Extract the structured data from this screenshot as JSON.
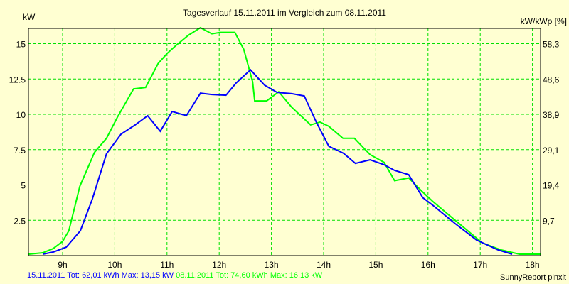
{
  "chart_data": {
    "type": "line",
    "title": "Tagesverlauf 15.11.2011 im Vergleich zum 08.11.2011",
    "ylabel": "kW",
    "ylabel_right": "kW/kWp [%]",
    "xlabel": "",
    "xlim": [
      8.35,
      18.16
    ],
    "ylim": [
      0,
      16.13
    ],
    "grid": true,
    "x_ticks": [
      9,
      10,
      11,
      12,
      13,
      14,
      15,
      16,
      17,
      18
    ],
    "x_tick_labels": [
      "9h",
      "10h",
      "11h",
      "12h",
      "13h",
      "14h",
      "15h",
      "16h",
      "17h",
      "18h"
    ],
    "y_ticks": [
      2.5,
      5,
      7.5,
      10,
      12.5,
      15
    ],
    "y_tick_labels": [
      "2.5",
      "5",
      "7.5",
      "10",
      "12.5",
      "15"
    ],
    "y_right_tick_labels": [
      "9,7",
      "19,4",
      "29,1",
      "38,9",
      "48,6",
      "58,3"
    ],
    "series": [
      {
        "name": "15.11.2011",
        "color": "#0000ff",
        "x": [
          8.62,
          8.82,
          9.07,
          9.34,
          9.57,
          9.84,
          10.12,
          10.39,
          10.63,
          10.87,
          11.1,
          11.37,
          11.64,
          11.86,
          12.13,
          12.32,
          12.6,
          12.87,
          13.11,
          13.39,
          13.63,
          13.86,
          14.1,
          14.38,
          14.61,
          14.89,
          15.16,
          15.36,
          15.63,
          15.9,
          16.08,
          16.52,
          16.93,
          17.34,
          17.61
        ],
        "y": [
          0.1,
          0.25,
          0.6,
          1.76,
          4.0,
          7.2,
          8.6,
          9.25,
          9.9,
          8.8,
          10.2,
          9.9,
          11.5,
          11.4,
          11.35,
          12.2,
          13.15,
          12.06,
          11.55,
          11.46,
          11.3,
          9.45,
          7.74,
          7.24,
          6.53,
          6.78,
          6.43,
          6.03,
          5.73,
          4.1,
          3.6,
          2.26,
          1.1,
          0.4,
          0.1
        ]
      },
      {
        "name": "08.11.2011",
        "color": "#00ff00",
        "x": [
          8.35,
          8.62,
          8.82,
          9.0,
          9.12,
          9.33,
          9.61,
          9.84,
          10.05,
          10.36,
          10.59,
          10.83,
          11.0,
          11.18,
          11.41,
          11.64,
          11.86,
          12.02,
          12.3,
          12.47,
          12.64,
          12.68,
          12.91,
          13.14,
          13.39,
          13.75,
          13.93,
          14.1,
          14.37,
          14.59,
          14.89,
          15.16,
          15.36,
          15.63,
          15.87,
          16.08,
          16.52,
          17.04,
          17.4,
          17.75,
          18.16
        ],
        "y": [
          0.1,
          0.2,
          0.5,
          1.0,
          1.76,
          4.9,
          7.3,
          8.3,
          9.8,
          11.8,
          11.9,
          13.6,
          14.3,
          14.9,
          15.6,
          16.13,
          15.7,
          15.8,
          15.8,
          14.6,
          12.3,
          10.95,
          10.95,
          11.6,
          10.5,
          9.25,
          9.45,
          9.15,
          8.3,
          8.3,
          7.15,
          6.6,
          5.3,
          5.5,
          4.6,
          3.87,
          2.5,
          0.9,
          0.4,
          0.1,
          0.1
        ]
      }
    ],
    "legend": {
      "blue_text": "15.11.2011 Tot: 62,01 kWh Max: 13,15 kW",
      "green_text": "08.11.2011 Tot: 74,60 kWh Max: 16,13 kW",
      "placement": "bottom-left"
    },
    "credit": "SunnyReport pinxit"
  }
}
